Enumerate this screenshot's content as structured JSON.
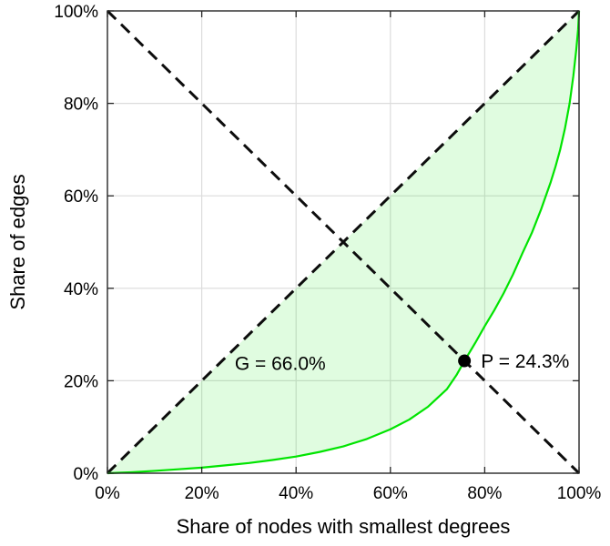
{
  "chart_data": {
    "type": "line",
    "title": "",
    "xlabel": "Share of nodes with smallest degrees",
    "ylabel": "Share of edges",
    "xlim": [
      0,
      100
    ],
    "ylim": [
      0,
      100
    ],
    "grid": true,
    "legend": "none",
    "tick_values": [
      0,
      20,
      40,
      60,
      80,
      100
    ],
    "x_tick_labels": [
      "0%",
      "20%",
      "40%",
      "60%",
      "80%",
      "100%"
    ],
    "y_tick_labels": [
      "0%",
      "20%",
      "40%",
      "60%",
      "80%",
      "100%"
    ],
    "gini_percent": 66.0,
    "p_intersection_percent": 24.3,
    "colors": {
      "curve": "#00e400",
      "area_fill": "#00e400",
      "area_opacity": 0.12,
      "dashed_lines": "#0d0d0d",
      "grid": "#dcdcdc",
      "axis_box": "#262626",
      "text": "#000000"
    },
    "series": [
      {
        "name": "lorenz-curve",
        "style": "solid",
        "points": [
          [
            0,
            0
          ],
          [
            5,
            0.2
          ],
          [
            10,
            0.5
          ],
          [
            15,
            0.85
          ],
          [
            20,
            1.2
          ],
          [
            25,
            1.7
          ],
          [
            30,
            2.2
          ],
          [
            35,
            2.85
          ],
          [
            40,
            3.6
          ],
          [
            45,
            4.6
          ],
          [
            50,
            5.8
          ],
          [
            55,
            7.4
          ],
          [
            60,
            9.5
          ],
          [
            64,
            11.6
          ],
          [
            68,
            14.4
          ],
          [
            72,
            18.2
          ],
          [
            74,
            21.2
          ],
          [
            75.7,
            24.3
          ],
          [
            78,
            28.2
          ],
          [
            80,
            31.8
          ],
          [
            82,
            35.2
          ],
          [
            84,
            38.9
          ],
          [
            86,
            43
          ],
          [
            88,
            47.6
          ],
          [
            90,
            52
          ],
          [
            92,
            57.2
          ],
          [
            94,
            63
          ],
          [
            95,
            66.3
          ],
          [
            96,
            70
          ],
          [
            97,
            74.5
          ],
          [
            98,
            80
          ],
          [
            98.8,
            86
          ],
          [
            99.4,
            91.5
          ],
          [
            99.8,
            96
          ],
          [
            100,
            100
          ]
        ]
      },
      {
        "name": "equality-diagonal",
        "style": "dashed",
        "points": [
          [
            0,
            0
          ],
          [
            100,
            100
          ]
        ]
      },
      {
        "name": "anti-diagonal",
        "style": "dashed",
        "points": [
          [
            0,
            100
          ],
          [
            100,
            0
          ]
        ]
      }
    ],
    "area_between": {
      "upper": "equality-diagonal",
      "lower": "lorenz-curve"
    },
    "point": {
      "x": 75.7,
      "y": 24.3,
      "radius": 7
    },
    "annotations": [
      {
        "id": "gini-label",
        "text": "G = 66.0%",
        "x": 27,
        "y": 22.3,
        "anchor": "start"
      },
      {
        "id": "p-label",
        "text": "P = 24.3%",
        "x": 79.2,
        "y": 22.8,
        "anchor": "start"
      }
    ]
  }
}
